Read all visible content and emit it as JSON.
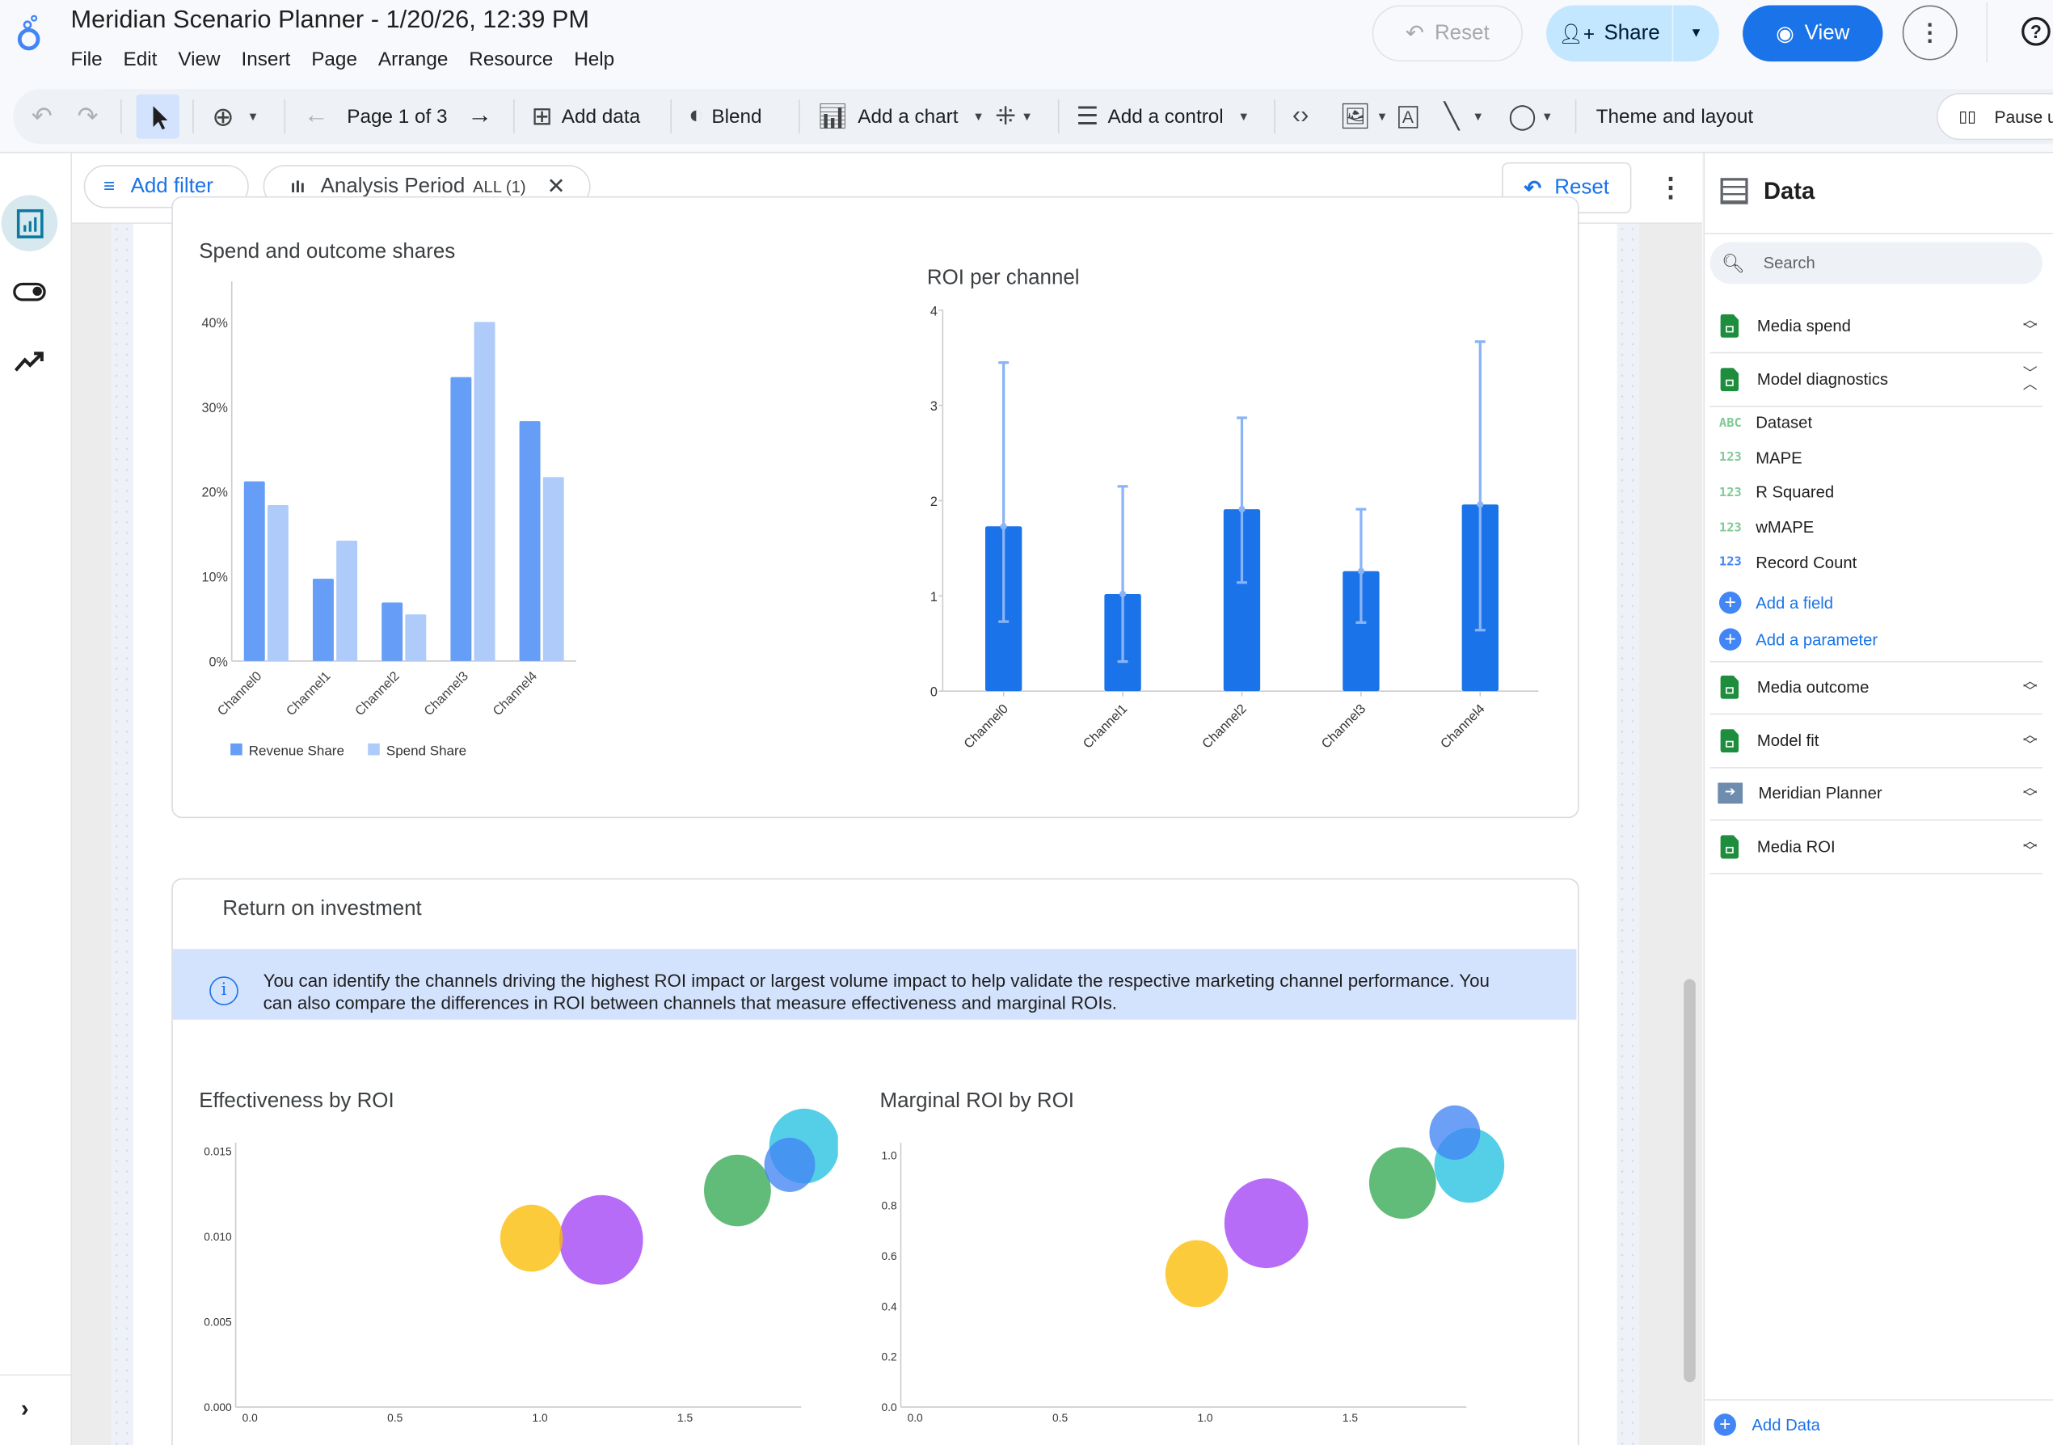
{
  "header": {
    "title": "Meridian Scenario Planner - 1/20/26, 12:39 PM",
    "menu": [
      "File",
      "Edit",
      "View",
      "Insert",
      "Page",
      "Arrange",
      "Resource",
      "Help"
    ],
    "reset_label": "Reset",
    "share_label": "Share",
    "view_label": "View"
  },
  "toolbar": {
    "page_label": "Page 1 of 3",
    "add_data": "Add data",
    "blend": "Blend",
    "add_chart": "Add a chart",
    "add_control": "Add a control",
    "theme_layout": "Theme and layout",
    "pause": "Pause u"
  },
  "filterbar": {
    "add_filter": "Add filter",
    "chip_label": "Analysis Period",
    "chip_value": "ALL (1)",
    "reset_label": "Reset"
  },
  "card1": {
    "title": "Spend and outcome shares"
  },
  "card2": {
    "title": "Return on investment",
    "banner": "You can identify the channels driving the highest ROI impact or largest volume impact to help validate the respective marketing channel performance. You can also compare the differences in ROI between channels that measure effectiveness and marginal ROIs."
  },
  "data_panel": {
    "title": "Data",
    "search_placeholder": "Search",
    "sources": [
      {
        "name": "Media spend",
        "icon": "sheets-icon"
      },
      {
        "name": "Model diagnostics",
        "icon": "sheets-icon",
        "expanded": true
      }
    ],
    "fields": [
      {
        "type": "ABC",
        "name": "Dataset",
        "color": "#81c995"
      },
      {
        "type": "123",
        "name": "MAPE",
        "color": "#81c995"
      },
      {
        "type": "123",
        "name": "R Squared",
        "color": "#81c995"
      },
      {
        "type": "123",
        "name": "wMAPE",
        "color": "#81c995"
      },
      {
        "type": "123",
        "name": "Record Count",
        "color": "#4285f4"
      }
    ],
    "add_field": "Add a field",
    "add_parameter": "Add a parameter",
    "more_sources": [
      {
        "name": "Media outcome",
        "icon": "sheets-icon"
      },
      {
        "name": "Model fit",
        "icon": "sheets-icon"
      },
      {
        "name": "Meridian Planner",
        "icon": "connector-icon"
      },
      {
        "name": "Media ROI",
        "icon": "sheets-icon"
      }
    ],
    "add_data": "Add Data"
  },
  "chart_data": [
    {
      "type": "bar",
      "title": "Spend and outcome shares",
      "categories": [
        "Channel0",
        "Channel1",
        "Channel2",
        "Channel3",
        "Channel4"
      ],
      "series": [
        {
          "name": "Revenue Share",
          "color": "#669df6",
          "values": [
            21.2,
            9.7,
            6.9,
            33.5,
            28.3
          ]
        },
        {
          "name": "Spend Share",
          "color": "#aecbfa",
          "values": [
            18.4,
            14.2,
            5.5,
            40.0,
            21.7
          ]
        }
      ],
      "yticks": [
        "0%",
        "10%",
        "20%",
        "30%",
        "40%"
      ],
      "ylim": [
        0,
        40
      ],
      "legend": "bottom-left"
    },
    {
      "type": "bar",
      "title": "ROI per channel",
      "categories": [
        "Channel0",
        "Channel1",
        "Channel2",
        "Channel3",
        "Channel4"
      ],
      "values": [
        1.73,
        1.02,
        1.91,
        1.26,
        1.96
      ],
      "error_low": [
        0.73,
        0.31,
        1.14,
        0.72,
        0.64
      ],
      "error_high": [
        3.45,
        2.15,
        2.87,
        1.91,
        3.67
      ],
      "yticks": [
        "0",
        "1",
        "2",
        "3",
        "4"
      ],
      "ylim": [
        0,
        4
      ],
      "color": "#1a73e8",
      "error_color": "#8ab4f8"
    },
    {
      "type": "scatter",
      "title": "Effectiveness by ROI",
      "xticks": [
        "0.0",
        "0.5",
        "1.0",
        "1.5"
      ],
      "yticks": [
        "0.000",
        "0.005",
        "0.010",
        "0.015"
      ],
      "xlim": [
        0,
        1.95
      ],
      "ylim": [
        0,
        0.0155
      ],
      "points": [
        {
          "x": 1.73,
          "y": 0.0127,
          "size": 18.4,
          "color": "#34a853"
        },
        {
          "x": 1.02,
          "y": 0.0099,
          "size": 14.2,
          "color": "#fbbc04"
        },
        {
          "x": 1.91,
          "y": 0.0142,
          "size": 5.5,
          "color": "#4285f4"
        },
        {
          "x": 1.26,
          "y": 0.0098,
          "size": 40.0,
          "color": "#a142f4"
        },
        {
          "x": 1.96,
          "y": 0.0153,
          "size": 21.7,
          "color": "#24c1e0"
        }
      ]
    },
    {
      "type": "scatter",
      "title": "Marginal ROI by ROI",
      "xticks": [
        "0.0",
        "0.5",
        "1.0",
        "1.5"
      ],
      "yticks": [
        "0.0",
        "0.2",
        "0.4",
        "0.6",
        "0.8",
        "1.0"
      ],
      "xlim": [
        0,
        1.95
      ],
      "ylim": [
        0,
        1.05
      ],
      "points": [
        {
          "x": 1.73,
          "y": 0.89,
          "size": 18.4,
          "color": "#34a853"
        },
        {
          "x": 1.02,
          "y": 0.53,
          "size": 14.2,
          "color": "#fbbc04"
        },
        {
          "x": 1.91,
          "y": 1.09,
          "size": 5.5,
          "color": "#4285f4"
        },
        {
          "x": 1.26,
          "y": 0.73,
          "size": 40.0,
          "color": "#a142f4"
        },
        {
          "x": 1.96,
          "y": 0.96,
          "size": 21.7,
          "color": "#24c1e0"
        }
      ]
    }
  ]
}
